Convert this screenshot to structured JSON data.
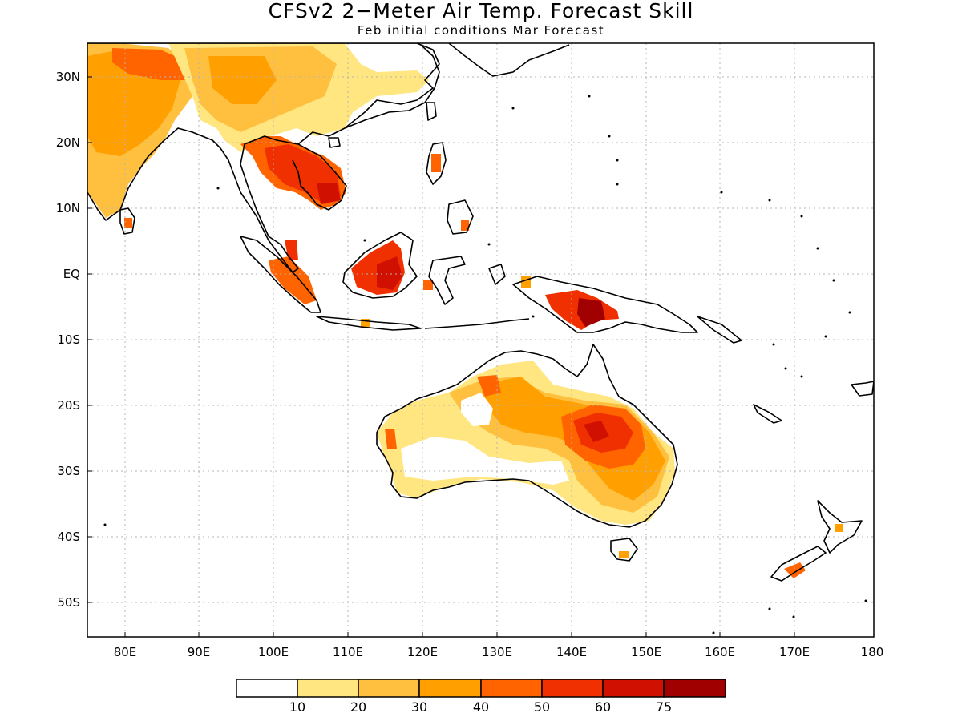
{
  "title": "CFSv2 2−Meter Air Temp. Forecast Skill",
  "subtitle": "Feb initial conditions  Mar Forecast",
  "lat_ticks": [
    "30N",
    "20N",
    "10N",
    "EQ",
    "10S",
    "20S",
    "30S",
    "40S",
    "50S"
  ],
  "lon_ticks": [
    "80E",
    "90E",
    "100E",
    "110E",
    "120E",
    "130E",
    "140E",
    "150E",
    "160E",
    "170E",
    "180"
  ],
  "colorbar": {
    "colors": [
      "#ffffff",
      "#ffe680",
      "#ffc040",
      "#ffa000",
      "#ff6400",
      "#f03000",
      "#d01000",
      "#a00000"
    ],
    "labels": [
      "10",
      "20",
      "30",
      "40",
      "50",
      "60",
      "75"
    ]
  },
  "colors": {
    "land_outline": "#000000",
    "grid": "#b4b4b4"
  }
}
